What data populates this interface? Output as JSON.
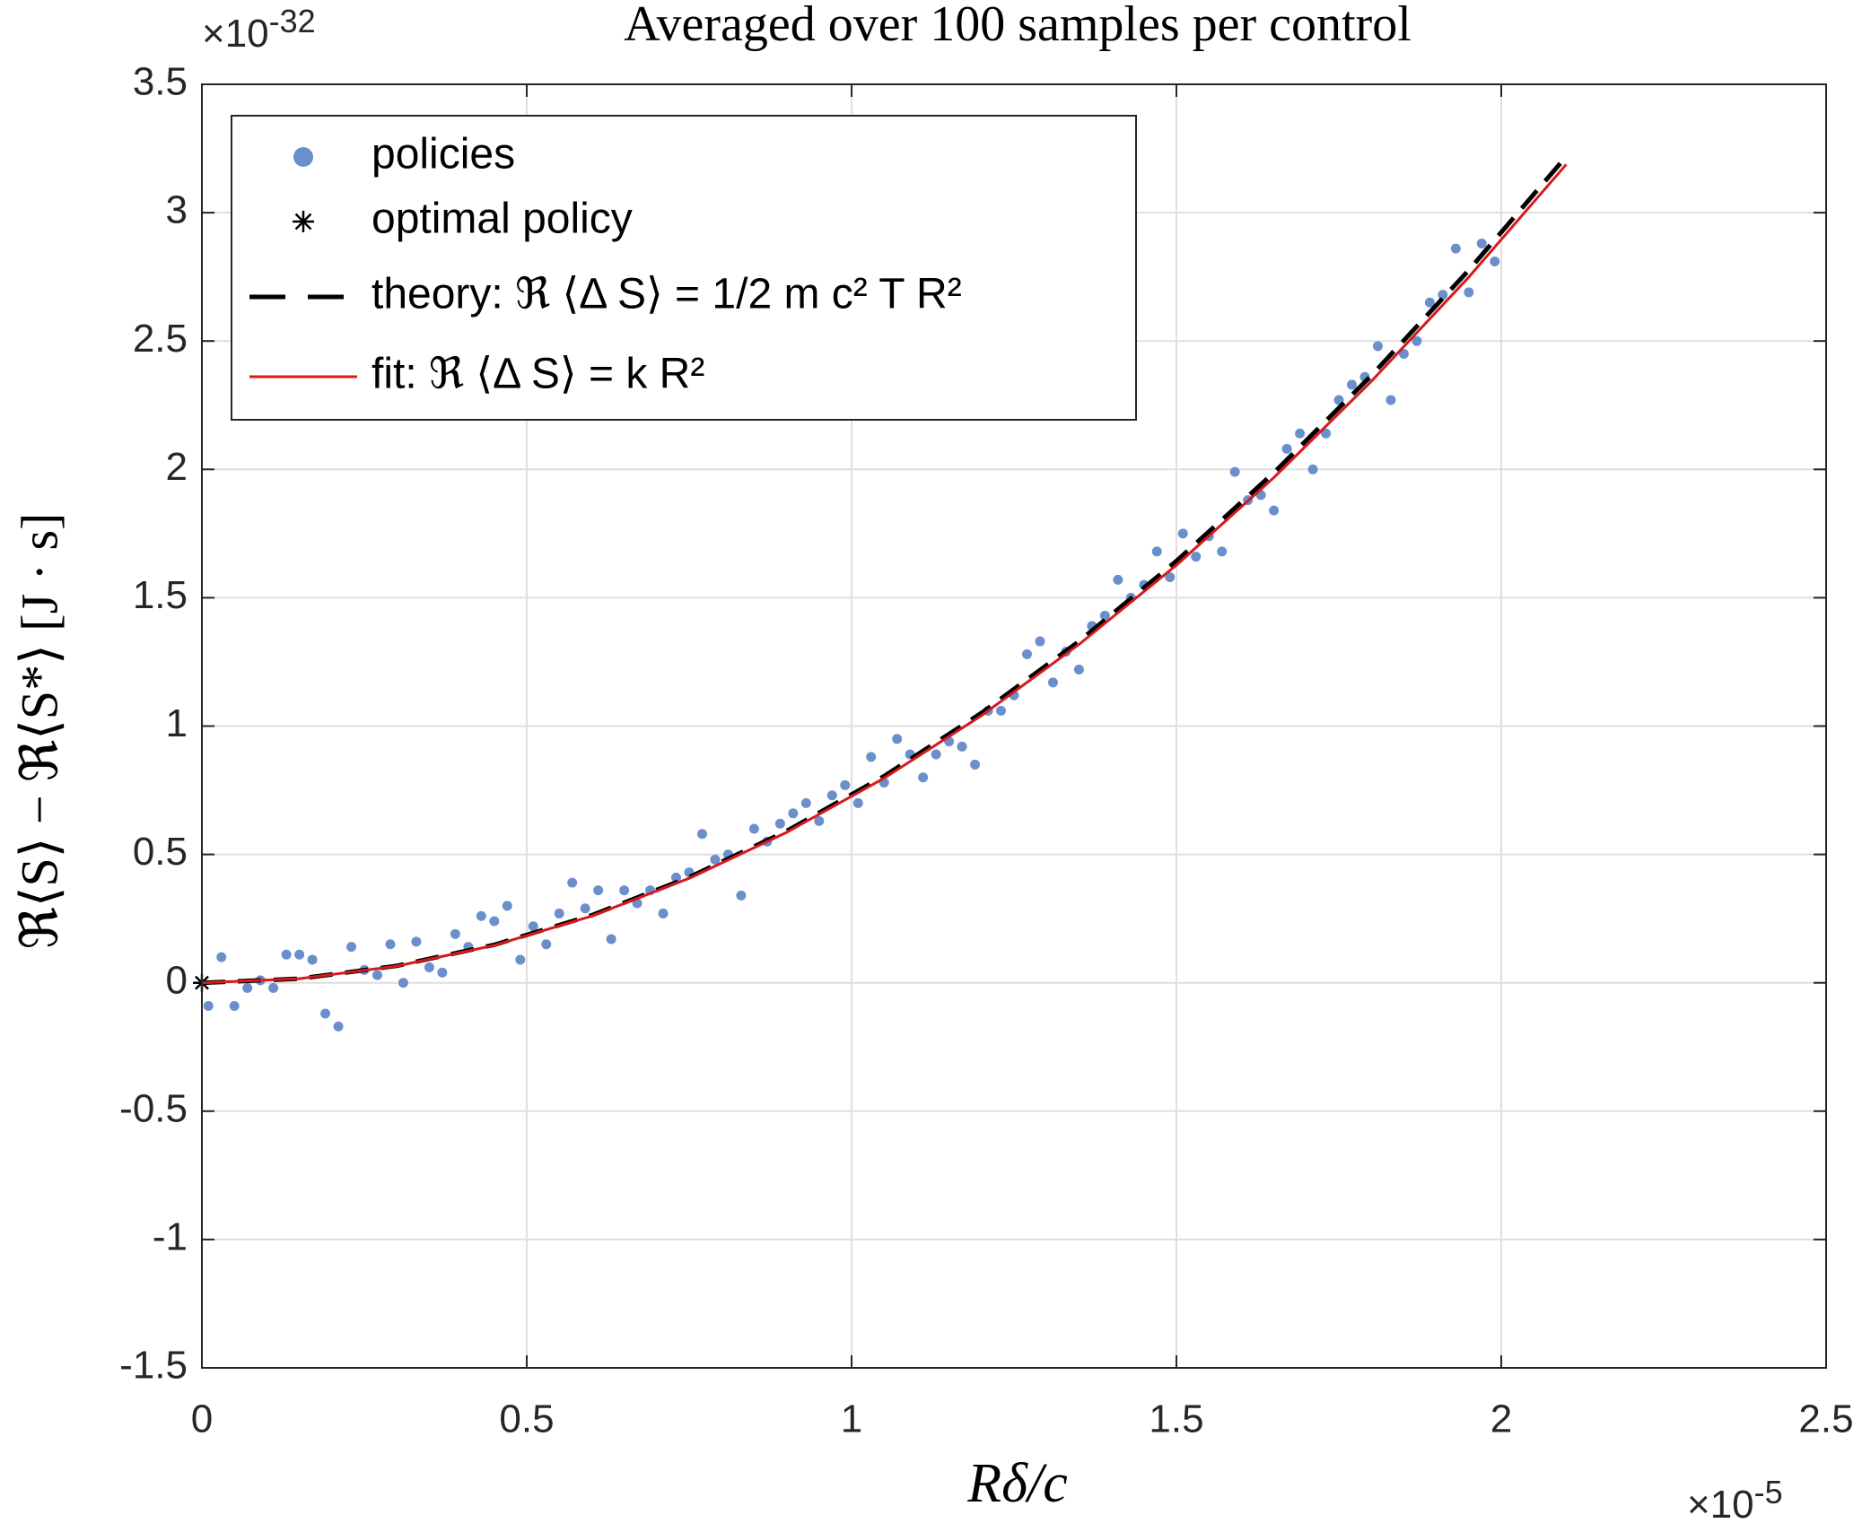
{
  "chart_data": {
    "type": "scatter",
    "title": "Averaged over 100 samples per control",
    "xlabel": "Rδ/c",
    "ylabel": "ℜ⟨S⟩ − ℜ⟨S*⟩ [J · s]",
    "x_multiplier": {
      "base": "×10",
      "exponent": "-5"
    },
    "y_multiplier": {
      "base": "×10",
      "exponent": "-32"
    },
    "xlim": [
      0,
      2.5
    ],
    "ylim": [
      -1.5,
      3.5
    ],
    "xticks": [
      0,
      0.5,
      1,
      1.5,
      2,
      2.5
    ],
    "yticks": [
      -1.5,
      -1,
      -0.5,
      0,
      0.5,
      1,
      1.5,
      2,
      2.5,
      3,
      3.5
    ],
    "grid": true,
    "legend": "northwest",
    "series": [
      {
        "name": "policies",
        "type": "scatter",
        "color": "#6a8fcc",
        "x": [
          0.01,
          0.03,
          0.05,
          0.07,
          0.09,
          0.11,
          0.13,
          0.15,
          0.17,
          0.19,
          0.21,
          0.23,
          0.25,
          0.27,
          0.29,
          0.31,
          0.33,
          0.35,
          0.37,
          0.39,
          0.41,
          0.43,
          0.45,
          0.47,
          0.49,
          0.51,
          0.53,
          0.55,
          0.57,
          0.59,
          0.61,
          0.63,
          0.65,
          0.67,
          0.69,
          0.71,
          0.73,
          0.75,
          0.77,
          0.79,
          0.81,
          0.83,
          0.85,
          0.87,
          0.89,
          0.91,
          0.93,
          0.95,
          0.97,
          0.99,
          1.01,
          1.03,
          1.05,
          1.07,
          1.09,
          1.11,
          1.13,
          1.15,
          1.17,
          1.19,
          1.21,
          1.23,
          1.25,
          1.27,
          1.29,
          1.31,
          1.33,
          1.35,
          1.37,
          1.39,
          1.41,
          1.43,
          1.45,
          1.47,
          1.49,
          1.51,
          1.53,
          1.55,
          1.57,
          1.59,
          1.61,
          1.63,
          1.65,
          1.67,
          1.69,
          1.71,
          1.73,
          1.75,
          1.77,
          1.79,
          1.81,
          1.83,
          1.85,
          1.87,
          1.89,
          1.91,
          1.93,
          1.95,
          1.97,
          1.99
        ],
        "values": [
          -0.09,
          0.1,
          -0.09,
          -0.02,
          0.01,
          -0.02,
          0.11,
          0.11,
          0.09,
          -0.12,
          -0.17,
          0.14,
          0.05,
          0.03,
          0.15,
          0.0,
          0.16,
          0.06,
          0.04,
          0.19,
          0.14,
          0.26,
          0.24,
          0.3,
          0.09,
          0.22,
          0.15,
          0.27,
          0.39,
          0.29,
          0.36,
          0.17,
          0.36,
          0.31,
          0.36,
          0.27,
          0.41,
          0.43,
          0.58,
          0.48,
          0.5,
          0.34,
          0.6,
          0.55,
          0.62,
          0.66,
          0.7,
          0.63,
          0.73,
          0.77,
          0.7,
          0.88,
          0.78,
          0.95,
          0.89,
          0.8,
          0.89,
          0.94,
          0.92,
          0.85,
          1.06,
          1.06,
          1.12,
          1.28,
          1.33,
          1.17,
          1.29,
          1.22,
          1.39,
          1.43,
          1.57,
          1.5,
          1.55,
          1.68,
          1.58,
          1.75,
          1.66,
          1.74,
          1.68,
          1.99,
          1.88,
          1.9,
          1.84,
          2.08,
          2.14,
          2.0,
          2.14,
          2.27,
          2.33,
          2.36,
          2.48,
          2.27,
          2.45,
          2.5,
          2.65,
          2.68,
          2.86,
          2.69,
          2.88,
          2.81
        ]
      },
      {
        "name": "optimal policy",
        "type": "star",
        "color": "#000000",
        "x": [
          0
        ],
        "values": [
          0
        ]
      },
      {
        "name": "theory: ℜ ⟨Δ S⟩ = 1/2 m c² T R²",
        "type": "line",
        "line_style": "dashed",
        "color": "#000000",
        "x": [
          0,
          0.15,
          0.3,
          0.45,
          0.6,
          0.75,
          0.9,
          1.05,
          1.2,
          1.35,
          1.5,
          1.65,
          1.8,
          1.95,
          2.1
        ],
        "values": [
          0,
          0.016,
          0.066,
          0.148,
          0.263,
          0.411,
          0.591,
          0.805,
          1.051,
          1.33,
          1.643,
          1.987,
          2.365,
          2.776,
          3.219
        ]
      },
      {
        "name": "fit: ℜ ⟨Δ S⟩ = k R²",
        "type": "line",
        "line_style": "solid",
        "color": "#d7191c",
        "x": [
          0,
          0.15,
          0.3,
          0.45,
          0.6,
          0.75,
          0.9,
          1.05,
          1.2,
          1.35,
          1.5,
          1.65,
          1.8,
          1.95,
          2.1
        ],
        "values": [
          0,
          0.016,
          0.065,
          0.146,
          0.26,
          0.407,
          0.586,
          0.797,
          1.041,
          1.318,
          1.627,
          1.968,
          2.343,
          2.749,
          3.188
        ]
      }
    ]
  }
}
